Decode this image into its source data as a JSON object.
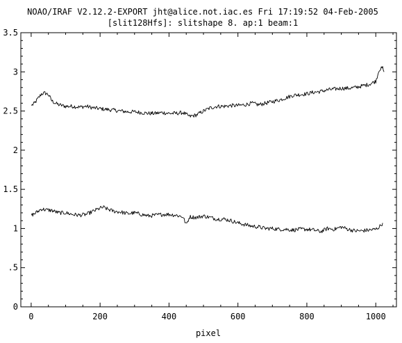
{
  "chart_data": {
    "type": "line",
    "title_line1": "NOAO/IRAF V2.12.2-EXPORT jht@alice.not.iac.es Fri 17:19:52 04-Feb-2005",
    "title_line2": "[slit128Hfs]: slitshape 8. ap:1 beam:1",
    "xlabel": "pixel",
    "ylabel": "",
    "xlim": [
      -30,
      1060
    ],
    "ylim": [
      0,
      3.5
    ],
    "x_ticks": [
      0,
      200,
      400,
      600,
      800,
      1000
    ],
    "x_tick_labels": [
      "0",
      "200",
      "400",
      "600",
      "800",
      "1000"
    ],
    "y_ticks": [
      0,
      0.5,
      1,
      1.5,
      2,
      2.5,
      3,
      3.5
    ],
    "y_tick_labels": [
      "0",
      ".5",
      "1",
      "1.5",
      "2",
      "2.5",
      "3",
      "3.5"
    ],
    "grid": false,
    "legend": "none",
    "line_color": "#000000",
    "series": [
      {
        "x": [
          1,
          10,
          20,
          30,
          40,
          50,
          60,
          70,
          80,
          100,
          120,
          140,
          160,
          180,
          200,
          220,
          240,
          260,
          280,
          300,
          320,
          340,
          360,
          380,
          400,
          420,
          440,
          460,
          480,
          500,
          520,
          540,
          560,
          580,
          600,
          620,
          640,
          660,
          680,
          700,
          720,
          740,
          760,
          780,
          800,
          820,
          840,
          860,
          880,
          900,
          920,
          940,
          960,
          980,
          1000,
          1010,
          1020,
          1024
        ],
        "y": [
          2.57,
          2.6,
          2.66,
          2.72,
          2.73,
          2.71,
          2.63,
          2.6,
          2.58,
          2.56,
          2.56,
          2.55,
          2.56,
          2.54,
          2.53,
          2.52,
          2.51,
          2.5,
          2.49,
          2.49,
          2.48,
          2.47,
          2.47,
          2.48,
          2.47,
          2.47,
          2.48,
          2.43,
          2.45,
          2.5,
          2.54,
          2.56,
          2.56,
          2.57,
          2.57,
          2.58,
          2.6,
          2.58,
          2.6,
          2.62,
          2.64,
          2.67,
          2.7,
          2.71,
          2.72,
          2.74,
          2.75,
          2.77,
          2.78,
          2.79,
          2.79,
          2.8,
          2.82,
          2.84,
          2.88,
          3.03,
          3.05,
          3.0
        ]
      },
      {
        "x": [
          1,
          10,
          20,
          30,
          40,
          60,
          80,
          100,
          120,
          140,
          160,
          180,
          200,
          210,
          220,
          240,
          260,
          280,
          300,
          320,
          340,
          360,
          380,
          400,
          420,
          440,
          450,
          460,
          480,
          500,
          520,
          540,
          560,
          580,
          600,
          620,
          640,
          660,
          680,
          700,
          720,
          740,
          760,
          780,
          800,
          820,
          840,
          860,
          880,
          900,
          920,
          940,
          960,
          980,
          1000,
          1010,
          1020
        ],
        "y": [
          1.17,
          1.19,
          1.22,
          1.25,
          1.24,
          1.23,
          1.2,
          1.2,
          1.18,
          1.17,
          1.18,
          1.22,
          1.26,
          1.27,
          1.25,
          1.22,
          1.21,
          1.19,
          1.2,
          1.18,
          1.16,
          1.17,
          1.18,
          1.18,
          1.17,
          1.15,
          1.05,
          1.15,
          1.14,
          1.16,
          1.14,
          1.12,
          1.12,
          1.1,
          1.07,
          1.05,
          1.03,
          1.02,
          1.0,
          1.0,
          0.99,
          0.99,
          0.98,
          0.99,
          0.99,
          0.98,
          0.96,
          1.0,
          0.99,
          1.02,
          0.99,
          0.97,
          0.97,
          0.98,
          0.99,
          1.02,
          1.07
        ]
      }
    ]
  }
}
